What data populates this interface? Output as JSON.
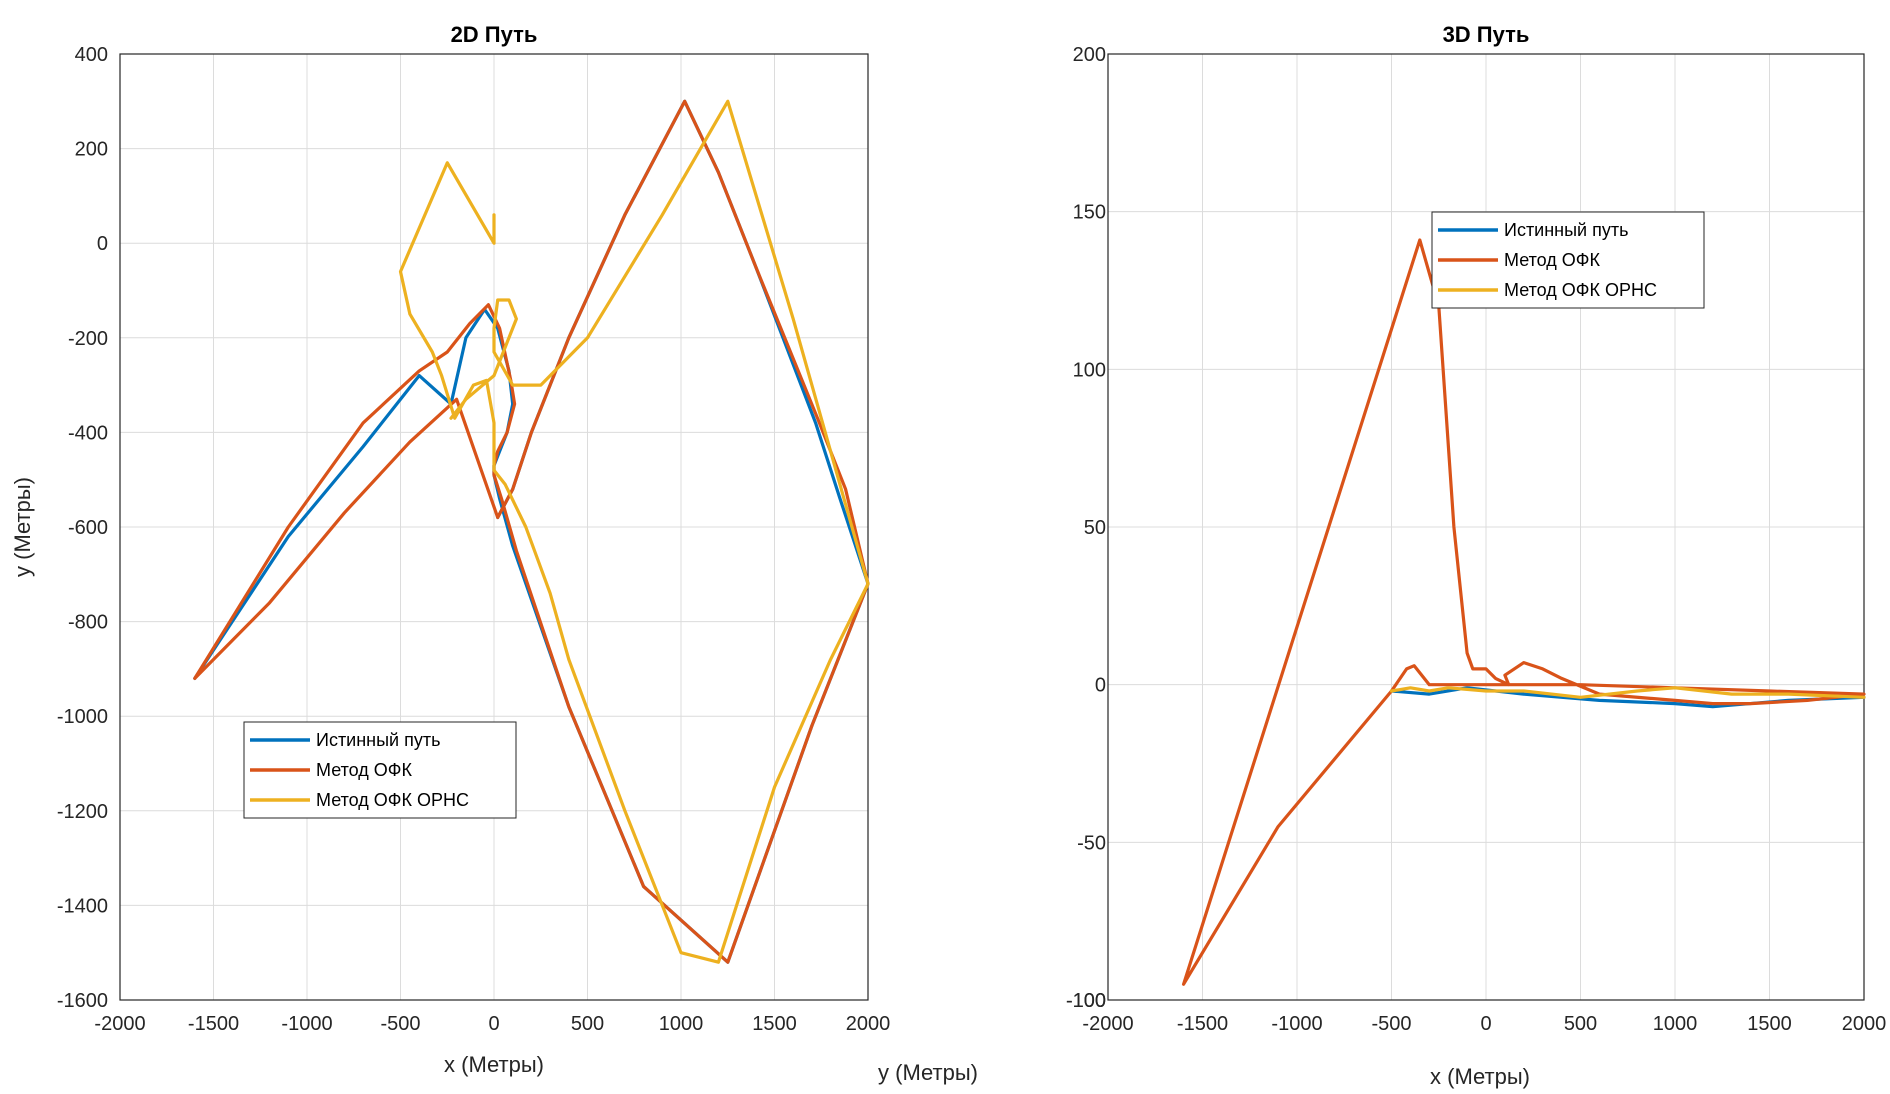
{
  "chart_data": [
    {
      "type": "line",
      "title": "2D Путь",
      "xlabel": "x (Метры)",
      "ylabel": "y (Метры)",
      "extra_label": "y (Метры)",
      "xlim": [
        -2000,
        2000
      ],
      "ylim": [
        -1600,
        400
      ],
      "xticks": [
        "-2000",
        "-1500",
        "-1000",
        "-500",
        "0",
        "500",
        "1000",
        "1500",
        "2000"
      ],
      "yticks": [
        "400",
        "200",
        "0",
        "-200",
        "-400",
        "-600",
        "-800",
        "-1000",
        "-1200",
        "-1400",
        "-1600"
      ],
      "grid": true,
      "legend_position": "lower-left",
      "series": [
        {
          "name": "Истинный путь",
          "color": "#0072BD",
          "x": [
            -1600,
            -1100,
            -700,
            -400,
            -230,
            -150,
            -50,
            20,
            80,
            100,
            70,
            30,
            0,
            0,
            30,
            100,
            400,
            800,
            1250,
            1700,
            2000,
            1850,
            1720,
            1400,
            1200,
            1020,
            700,
            400,
            200,
            100,
            20
          ],
          "y": [
            -920,
            -620,
            -430,
            -280,
            -340,
            -200,
            -140,
            -180,
            -270,
            -340,
            -400,
            -440,
            -470,
            -490,
            -540,
            -640,
            -980,
            -1360,
            -1520,
            -1020,
            -720,
            -540,
            -380,
            -50,
            150,
            300,
            60,
            -200,
            -400,
            -520,
            -580
          ]
        },
        {
          "name": "Метод ОФК",
          "color": "#D95319",
          "x": [
            -1600,
            -1100,
            -700,
            -400,
            -250,
            -130,
            -30,
            30,
            90,
            110,
            70,
            20,
            0,
            0,
            40,
            120,
            400,
            800,
            1250,
            1700,
            2000,
            1880,
            1730,
            1400,
            1200,
            1020,
            700,
            400,
            200,
            100,
            20,
            -200,
            -450,
            -800,
            -1200,
            -1600
          ],
          "y": [
            -920,
            -600,
            -380,
            -270,
            -230,
            -170,
            -130,
            -180,
            -290,
            -340,
            -400,
            -440,
            -470,
            -490,
            -540,
            -650,
            -980,
            -1360,
            -1520,
            -1020,
            -720,
            -520,
            -370,
            -50,
            150,
            300,
            60,
            -200,
            -400,
            -520,
            -580,
            -330,
            -420,
            -570,
            -760,
            -920
          ]
        },
        {
          "name": "Метод ОФК ОРНС",
          "color": "#EDB120",
          "x": [
            0,
            0,
            -250,
            -500,
            -450,
            -330,
            -280,
            -210,
            -110,
            -40,
            0,
            0,
            60,
            170,
            300,
            400,
            700,
            1000,
            1200,
            1500,
            1800,
            2000,
            1600,
            1250,
            900,
            500,
            250,
            100,
            0,
            0,
            20,
            80,
            120,
            0,
            -150,
            -230
          ],
          "y": [
            60,
            0,
            170,
            -60,
            -150,
            -230,
            -280,
            -370,
            -300,
            -290,
            -380,
            -480,
            -510,
            -600,
            -740,
            -880,
            -1200,
            -1500,
            -1520,
            -1150,
            -880,
            -720,
            -160,
            300,
            60,
            -200,
            -300,
            -300,
            -230,
            -180,
            -120,
            -120,
            -160,
            -280,
            -330,
            -370
          ]
        }
      ]
    },
    {
      "type": "line",
      "title": "3D Путь",
      "xlabel": "x (Метры)",
      "xlim": [
        -2000,
        2000
      ],
      "ylim": [
        -100,
        200
      ],
      "xticks": [
        "-2000",
        "-1500",
        "-1000",
        "-500",
        "0",
        "500",
        "1000",
        "1500",
        "2000"
      ],
      "yticks": [
        "200",
        "150",
        "100",
        "50",
        "0",
        "-50",
        "-100",
        "-100"
      ],
      "grid": true,
      "legend_position": "upper-center",
      "series": [
        {
          "name": "Истинный путь",
          "color": "#0072BD",
          "x": [
            -500,
            -300,
            -100,
            200,
            600,
            1000,
            1200,
            1600,
            2000
          ],
          "y": [
            -2,
            -3,
            -1,
            -3,
            -5,
            -6,
            -7,
            -5,
            -4
          ]
        },
        {
          "name": "Метод ОФК",
          "color": "#D95319",
          "x": [
            -1600,
            -350,
            -250,
            -170,
            -100,
            -70,
            0,
            50,
            120,
            100,
            200,
            300,
            400,
            600,
            1000,
            1200,
            1400,
            1700,
            2000,
            1500,
            1000,
            500,
            200,
            -100,
            -300,
            -380,
            -420,
            -500,
            -1100,
            -1600
          ],
          "y": [
            -95,
            141,
            120,
            50,
            10,
            5,
            5,
            2,
            0,
            3,
            7,
            5,
            2,
            -3,
            -5,
            -6,
            -6,
            -5,
            -3,
            -2,
            -1,
            0,
            0,
            0,
            0,
            6,
            5,
            -2,
            -45,
            -95
          ]
        },
        {
          "name": "Метод ОФК ОРНС",
          "color": "#EDB120",
          "x": [
            -500,
            -400,
            -300,
            -200,
            0,
            200,
            500,
            800,
            1000,
            1300,
            1600,
            2000
          ],
          "y": [
            -2,
            -1,
            -2,
            -1,
            -2,
            -2,
            -4,
            -2,
            -1,
            -3,
            -3,
            -4
          ]
        }
      ]
    }
  ]
}
